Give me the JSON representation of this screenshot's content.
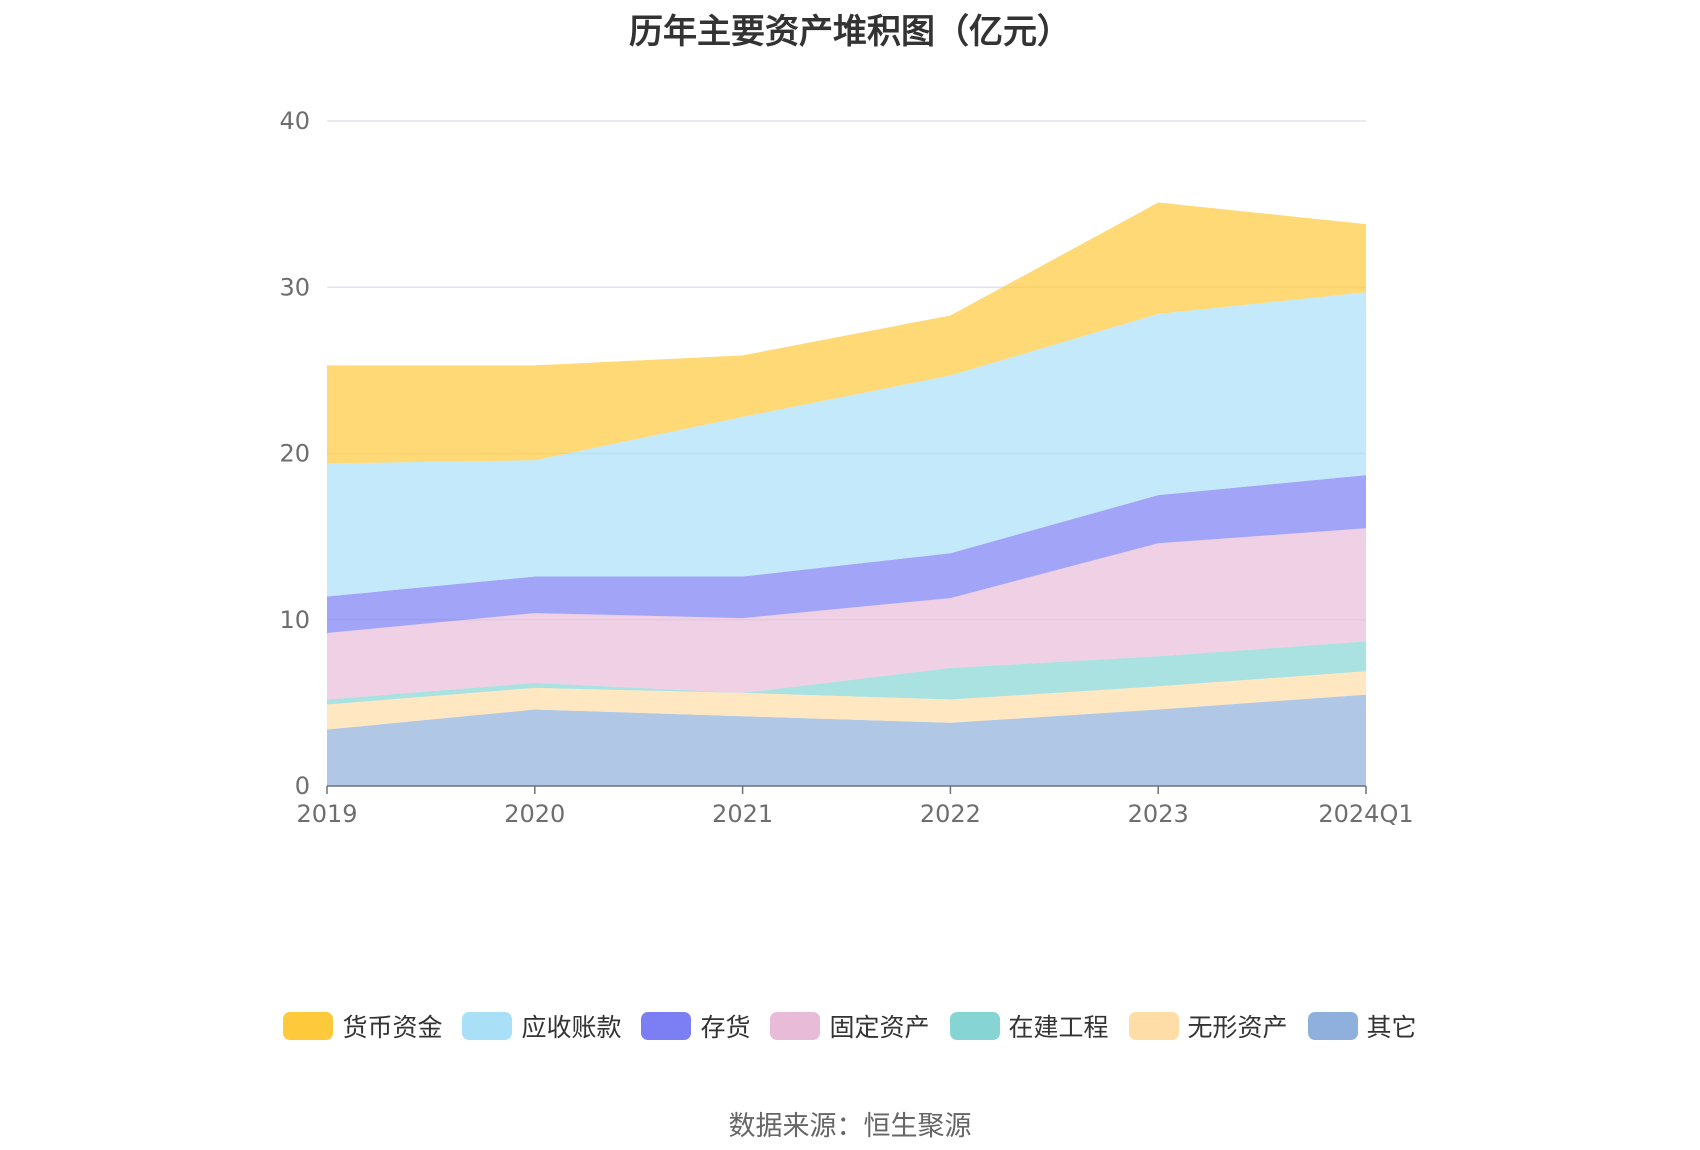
{
  "chart_data": {
    "type": "area",
    "stacked": true,
    "title": "历年主要资产堆积图（亿元）",
    "x": [
      "2019",
      "2020",
      "2021",
      "2022",
      "2023",
      "2024Q1"
    ],
    "ylim": [
      0,
      40
    ],
    "yticks": [
      "0",
      "10",
      "20",
      "30",
      "40"
    ],
    "grid": true,
    "legend_position": "bottom",
    "series": [
      {
        "name": "其它",
        "color": "#8fb0dc",
        "values": [
          3.4,
          4.6,
          4.2,
          3.8,
          4.6,
          5.5
        ]
      },
      {
        "name": "无形资产",
        "color": "#ffdda6",
        "values": [
          1.5,
          1.3,
          1.4,
          1.4,
          1.4,
          1.4
        ]
      },
      {
        "name": "在建工程",
        "color": "#86d4d4",
        "values": [
          0.3,
          0.3,
          0.0,
          1.9,
          1.8,
          1.8
        ]
      },
      {
        "name": "固定资产",
        "color": "#e8bcd9",
        "values": [
          4.0,
          4.2,
          4.5,
          4.2,
          6.8,
          6.8
        ]
      },
      {
        "name": "存货",
        "color": "#7b7ff3",
        "values": [
          2.2,
          2.2,
          2.5,
          2.7,
          2.9,
          3.2
        ]
      },
      {
        "name": "应收账款",
        "color": "#aadff8",
        "values": [
          8.0,
          7.0,
          9.6,
          10.7,
          10.9,
          11.0
        ]
      },
      {
        "name": "货币资金",
        "color": "#ffc93c",
        "values": [
          5.9,
          5.7,
          3.7,
          3.6,
          6.7,
          4.1
        ]
      }
    ],
    "legend_order": [
      "货币资金",
      "应收账款",
      "存货",
      "固定资产",
      "在建工程",
      "无形资产",
      "其它"
    ]
  },
  "footer": {
    "source": "数据来源：恒生聚源"
  }
}
